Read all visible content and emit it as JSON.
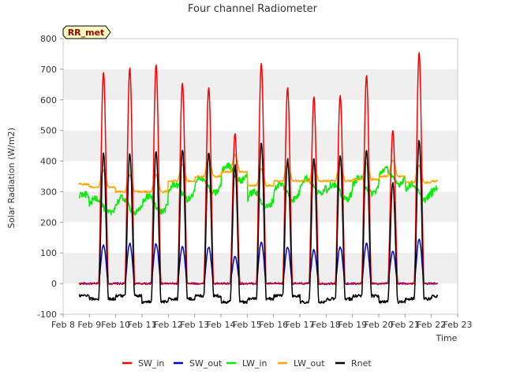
{
  "chart_data": {
    "type": "line",
    "title": "Four channel Radiometer",
    "xlabel": "Time",
    "ylabel": "Solar Radiation (W/m2)",
    "station_label": "RR_met",
    "xlim": [
      "2024-02-08",
      "2024-02-23"
    ],
    "ylim": [
      -100,
      800
    ],
    "x_ticks": [
      "Feb 8",
      "Feb 9",
      "Feb 10",
      "Feb 11",
      "Feb 12",
      "Feb 13",
      "Feb 14",
      "Feb 15",
      "Feb 16",
      "Feb 17",
      "Feb 18",
      "Feb 19",
      "Feb 20",
      "Feb 21",
      "Feb 22",
      "Feb 23"
    ],
    "y_ticks": [
      -100,
      0,
      100,
      200,
      300,
      400,
      500,
      600,
      700,
      800
    ],
    "grid": "horizontal bands",
    "legend_position": "bottom",
    "days": [
      "Feb 8",
      "Feb 9",
      "Feb 10",
      "Feb 11",
      "Feb 12",
      "Feb 13",
      "Feb 14",
      "Feb 15",
      "Feb 16",
      "Feb 17",
      "Feb 18",
      "Feb 19",
      "Feb 20",
      "Feb 21",
      "Feb 22"
    ],
    "series": [
      {
        "name": "SW_in",
        "color": "#ff0000",
        "note": "daily peak values",
        "values": [
          null,
          690,
          705,
          715,
          655,
          640,
          490,
          720,
          640,
          610,
          615,
          680,
          500,
          755,
          770
        ]
      },
      {
        "name": "SW_out",
        "color": "#0000cc",
        "note": "daily peak values",
        "values": [
          null,
          125,
          130,
          130,
          120,
          120,
          90,
          135,
          120,
          110,
          120,
          130,
          105,
          145,
          150
        ]
      },
      {
        "name": "LW_in",
        "color": "#00ee00",
        "note": "daily mean values",
        "values": [
          null,
          255,
          255,
          260,
          300,
          320,
          360,
          275,
          300,
          320,
          300,
          320,
          350,
          300,
          290
        ]
      },
      {
        "name": "LW_out",
        "color": "#ffa500",
        "note": "daily mean values",
        "values": [
          null,
          325,
          310,
          310,
          345,
          360,
          375,
          330,
          345,
          345,
          345,
          350,
          360,
          340,
          345
        ]
      },
      {
        "name": "Rnet",
        "color": "#000000",
        "note": "daily peak values",
        "values": [
          null,
          425,
          425,
          435,
          440,
          430,
          385,
          460,
          405,
          410,
          420,
          435,
          330,
          470,
          485
        ]
      }
    ]
  }
}
